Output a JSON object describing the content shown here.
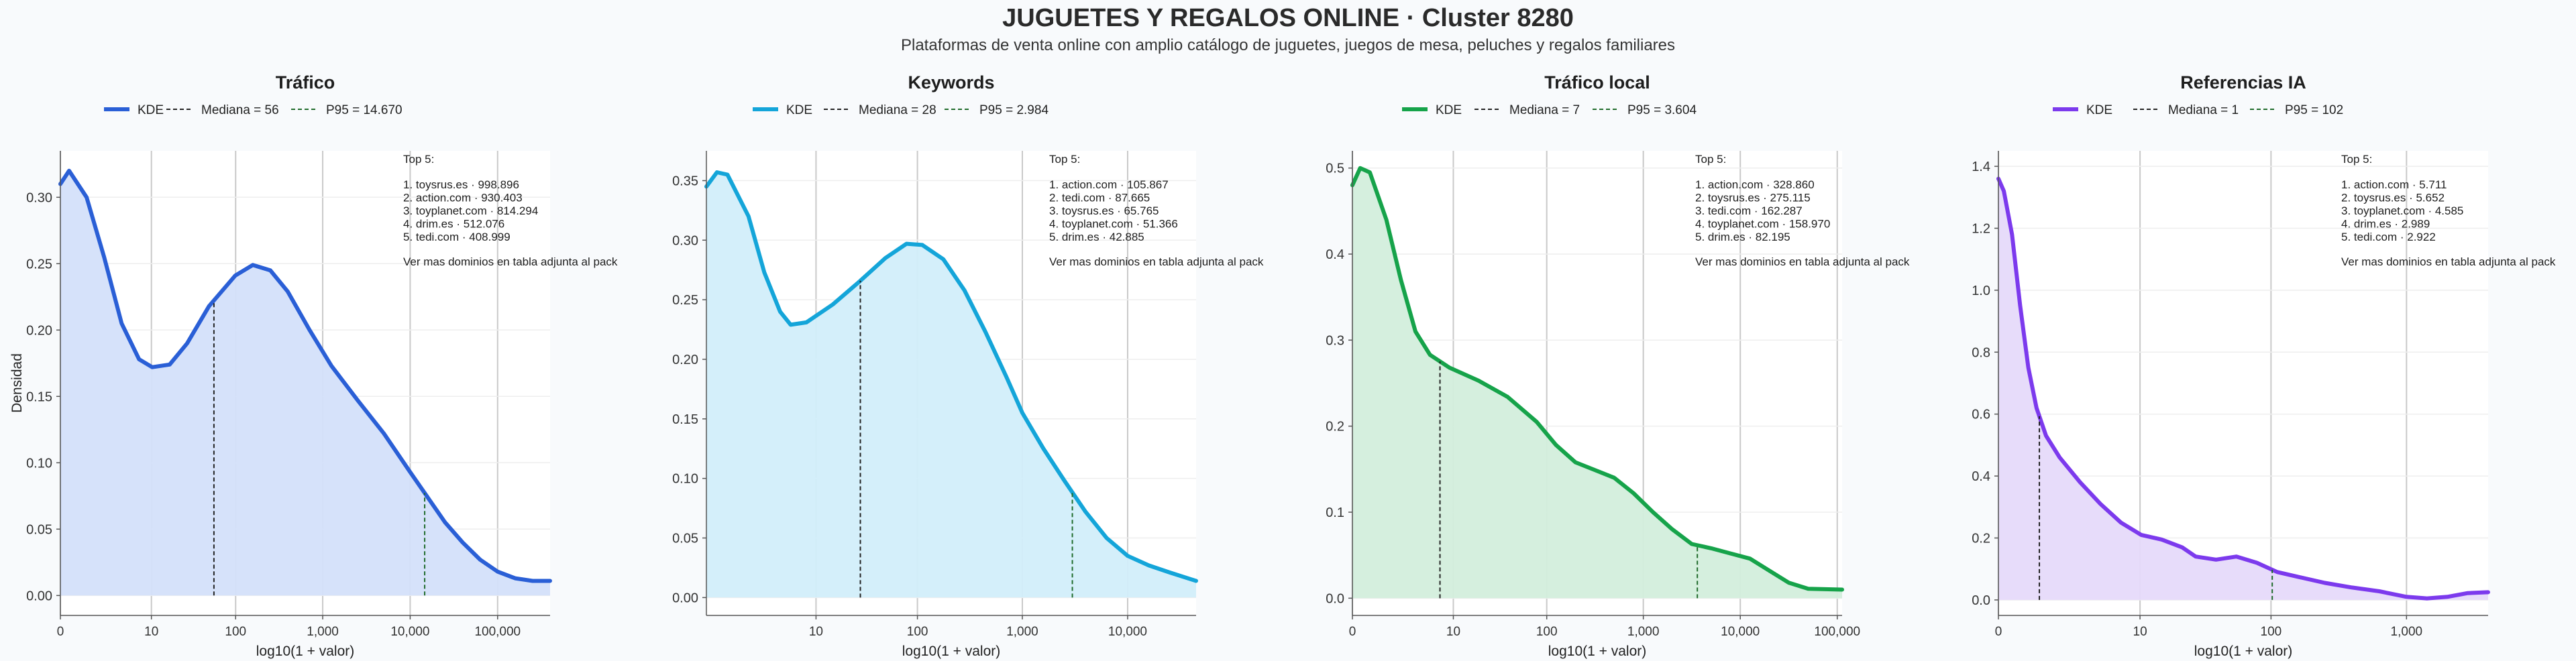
{
  "header": {
    "title": "JUGUETES Y REGALOS ONLINE · Cluster 8280",
    "subtitle": "Plataformas de venta online con amplio catálogo de juguetes, juegos de mesa, peluches y regalos familiares"
  },
  "chart_data": [
    {
      "type": "area",
      "title": "Tráfico",
      "xlabel": "log10(1 + valor)",
      "ylabel": "Densidad",
      "color": "#2a5fd6",
      "fill": "#d4e0fa",
      "x_domain": [
        0,
        5.6
      ],
      "x_ticks": [
        {
          "pos": 0,
          "label": "0"
        },
        {
          "pos": 1.041,
          "label": "10"
        },
        {
          "pos": 2.004,
          "label": "100"
        },
        {
          "pos": 3,
          "label": "1,000"
        },
        {
          "pos": 4,
          "label": "10,000"
        },
        {
          "pos": 5,
          "label": "100,000"
        }
      ],
      "ylim": [
        -0.015,
        0.335
      ],
      "y_ticks": [
        0,
        0.05,
        0.1,
        0.15,
        0.2,
        0.25,
        0.3
      ],
      "y_tick_labels": [
        "0.00",
        "0.05",
        "0.10",
        "0.15",
        "0.20",
        "0.25",
        "0.30"
      ],
      "curve": [
        [
          0,
          0.31
        ],
        [
          0.1,
          0.32
        ],
        [
          0.3,
          0.3
        ],
        [
          0.5,
          0.255
        ],
        [
          0.7,
          0.205
        ],
        [
          0.9,
          0.178
        ],
        [
          1.05,
          0.172
        ],
        [
          1.25,
          0.174
        ],
        [
          1.45,
          0.19
        ],
        [
          1.7,
          0.218
        ],
        [
          2.0,
          0.241
        ],
        [
          2.2,
          0.249
        ],
        [
          2.4,
          0.245
        ],
        [
          2.6,
          0.229
        ],
        [
          2.85,
          0.2
        ],
        [
          3.1,
          0.173
        ],
        [
          3.4,
          0.147
        ],
        [
          3.7,
          0.122
        ],
        [
          4.0,
          0.093
        ],
        [
          4.2,
          0.074
        ],
        [
          4.4,
          0.055
        ],
        [
          4.6,
          0.04
        ],
        [
          4.8,
          0.027
        ],
        [
          5.0,
          0.018
        ],
        [
          5.2,
          0.013
        ],
        [
          5.4,
          0.011
        ],
        [
          5.6,
          0.011
        ]
      ],
      "median_x": 1.756,
      "p95_x": 4.166,
      "legend": {
        "kde": "KDE",
        "median": "Mediana = 56",
        "p95": "P95 = 14.670"
      },
      "top_title": "Top 5:",
      "top_items": [
        "1. toysrus.es · 998.896",
        "2. action.com · 930.403",
        "3. toyplanet.com · 814.294",
        "4. drim.es · 512.076",
        "5. tedi.com · 408.999"
      ],
      "top_note": "Ver mas dominios en tabla adjunta al pack"
    },
    {
      "type": "area",
      "title": "Keywords",
      "xlabel": "log10(1 + valor)",
      "ylabel": "",
      "color": "#14a5d9",
      "fill": "#d2eefa",
      "x_domain": [
        0,
        4.65
      ],
      "x_ticks": [
        {
          "pos": 1.041,
          "label": "10"
        },
        {
          "pos": 2.004,
          "label": "100"
        },
        {
          "pos": 3,
          "label": "1,000"
        },
        {
          "pos": 4,
          "label": "10,000"
        }
      ],
      "ylim": [
        -0.015,
        0.375
      ],
      "y_ticks": [
        0,
        0.05,
        0.1,
        0.15,
        0.2,
        0.25,
        0.3,
        0.35
      ],
      "y_tick_labels": [
        "0.00",
        "0.05",
        "0.10",
        "0.15",
        "0.20",
        "0.25",
        "0.30",
        "0.35"
      ],
      "curve": [
        [
          0,
          0.345
        ],
        [
          0.1,
          0.357
        ],
        [
          0.2,
          0.355
        ],
        [
          0.4,
          0.32
        ],
        [
          0.55,
          0.273
        ],
        [
          0.7,
          0.24
        ],
        [
          0.8,
          0.229
        ],
        [
          0.95,
          0.231
        ],
        [
          1.2,
          0.246
        ],
        [
          1.45,
          0.265
        ],
        [
          1.7,
          0.285
        ],
        [
          1.9,
          0.297
        ],
        [
          2.05,
          0.296
        ],
        [
          2.25,
          0.284
        ],
        [
          2.45,
          0.258
        ],
        [
          2.65,
          0.223
        ],
        [
          2.85,
          0.185
        ],
        [
          3.0,
          0.155
        ],
        [
          3.2,
          0.125
        ],
        [
          3.4,
          0.098
        ],
        [
          3.6,
          0.072
        ],
        [
          3.8,
          0.05
        ],
        [
          4.0,
          0.035
        ],
        [
          4.2,
          0.027
        ],
        [
          4.4,
          0.021
        ],
        [
          4.65,
          0.014
        ]
      ],
      "median_x": 1.462,
      "p95_x": 3.475,
      "legend": {
        "kde": "KDE",
        "median": "Mediana = 28",
        "p95": "P95 = 2.984"
      },
      "top_title": "Top 5:",
      "top_items": [
        "1. action.com · 105.867",
        "2. tedi.com · 87.665",
        "3. toysrus.es · 65.765",
        "4. toyplanet.com · 51.366",
        "5. drim.es · 42.885"
      ],
      "top_note": "Ver mas dominios en tabla adjunta al pack"
    },
    {
      "type": "area",
      "title": "Tráfico local",
      "xlabel": "log10(1 + valor)",
      "ylabel": "",
      "color": "#16a34a",
      "fill": "#d3eedc",
      "x_domain": [
        0,
        5.05
      ],
      "x_ticks": [
        {
          "pos": 0,
          "label": "0"
        },
        {
          "pos": 1.041,
          "label": "10"
        },
        {
          "pos": 2.004,
          "label": "100"
        },
        {
          "pos": 3,
          "label": "1,000"
        },
        {
          "pos": 4,
          "label": "10,000"
        },
        {
          "pos": 5,
          "label": "100,000"
        }
      ],
      "ylim": [
        -0.02,
        0.52
      ],
      "y_ticks": [
        0,
        0.1,
        0.2,
        0.3,
        0.4,
        0.5
      ],
      "y_tick_labels": [
        "0.0",
        "0.1",
        "0.2",
        "0.3",
        "0.4",
        "0.5"
      ],
      "curve": [
        [
          0,
          0.48
        ],
        [
          0.08,
          0.5
        ],
        [
          0.18,
          0.495
        ],
        [
          0.35,
          0.44
        ],
        [
          0.5,
          0.37
        ],
        [
          0.65,
          0.31
        ],
        [
          0.8,
          0.283
        ],
        [
          1.0,
          0.268
        ],
        [
          1.3,
          0.253
        ],
        [
          1.6,
          0.234
        ],
        [
          1.9,
          0.205
        ],
        [
          2.1,
          0.178
        ],
        [
          2.3,
          0.158
        ],
        [
          2.5,
          0.149
        ],
        [
          2.7,
          0.14
        ],
        [
          2.9,
          0.122
        ],
        [
          3.1,
          0.1
        ],
        [
          3.3,
          0.08
        ],
        [
          3.5,
          0.063
        ],
        [
          3.7,
          0.058
        ],
        [
          3.9,
          0.052
        ],
        [
          4.1,
          0.046
        ],
        [
          4.3,
          0.032
        ],
        [
          4.5,
          0.018
        ],
        [
          4.7,
          0.011
        ],
        [
          5.05,
          0.01
        ]
      ],
      "median_x": 0.903,
      "p95_x": 3.557,
      "legend": {
        "kde": "KDE",
        "median": "Mediana = 7",
        "p95": "P95 = 3.604"
      },
      "top_title": "Top 5:",
      "top_items": [
        "1. action.com · 328.860",
        "2. toysrus.es · 275.115",
        "3. tedi.com · 162.287",
        "4. toyplanet.com · 158.970",
        "5. drim.es · 82.195"
      ],
      "top_note": "Ver mas dominios en tabla adjunta al pack"
    },
    {
      "type": "area",
      "title": "Referencias IA",
      "xlabel": "log10(1 + valor)",
      "ylabel": "",
      "color": "#7c3aed",
      "fill": "#e6dafa",
      "x_domain": [
        0,
        3.6
      ],
      "x_ticks": [
        {
          "pos": 0,
          "label": "0"
        },
        {
          "pos": 1.041,
          "label": "10"
        },
        {
          "pos": 2.004,
          "label": "100"
        },
        {
          "pos": 3,
          "label": "1,000"
        }
      ],
      "ylim": [
        -0.05,
        1.45
      ],
      "y_ticks": [
        0,
        0.2,
        0.4,
        0.6,
        0.8,
        1.0,
        1.2,
        1.4
      ],
      "y_tick_labels": [
        "0.0",
        "0.2",
        "0.4",
        "0.6",
        "0.8",
        "1.0",
        "1.2",
        "1.4"
      ],
      "curve": [
        [
          0,
          1.36
        ],
        [
          0.04,
          1.32
        ],
        [
          0.1,
          1.18
        ],
        [
          0.16,
          0.95
        ],
        [
          0.22,
          0.75
        ],
        [
          0.28,
          0.62
        ],
        [
          0.35,
          0.53
        ],
        [
          0.45,
          0.46
        ],
        [
          0.6,
          0.38
        ],
        [
          0.75,
          0.31
        ],
        [
          0.9,
          0.25
        ],
        [
          1.05,
          0.21
        ],
        [
          1.2,
          0.195
        ],
        [
          1.35,
          0.17
        ],
        [
          1.45,
          0.14
        ],
        [
          1.6,
          0.13
        ],
        [
          1.75,
          0.14
        ],
        [
          1.9,
          0.12
        ],
        [
          2.05,
          0.09
        ],
        [
          2.2,
          0.075
        ],
        [
          2.4,
          0.055
        ],
        [
          2.6,
          0.04
        ],
        [
          2.8,
          0.028
        ],
        [
          3.0,
          0.01
        ],
        [
          3.15,
          0.005
        ],
        [
          3.3,
          0.01
        ],
        [
          3.45,
          0.022
        ],
        [
          3.6,
          0.025
        ]
      ],
      "median_x": 0.301,
      "p95_x": 2.013,
      "legend": {
        "kde": "KDE",
        "median": "Mediana = 1",
        "p95": "P95 = 102"
      },
      "top_title": "Top 5:",
      "top_items": [
        "1. action.com · 5.711",
        "2. toysrus.es · 5.652",
        "3. toyplanet.com · 4.585",
        "4. drim.es · 2.989",
        "5. tedi.com · 2.922"
      ],
      "top_note": "Ver mas dominios en tabla adjunta al pack"
    }
  ]
}
